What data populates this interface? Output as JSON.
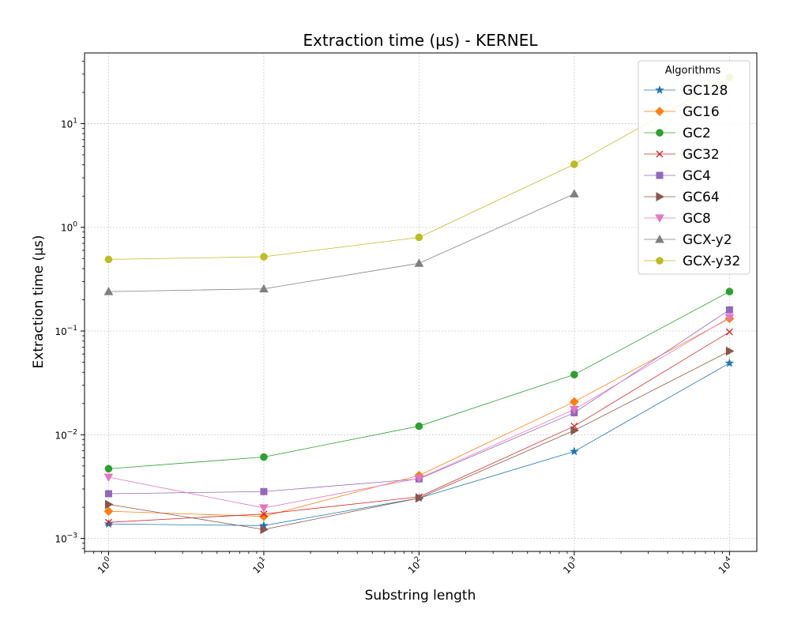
{
  "chart_data": {
    "type": "line",
    "title": "Extraction time (µs) - KERNEL",
    "xlabel": "Substring length",
    "ylabel": "Extraction time (µs)",
    "x_scale": "log",
    "y_scale": "log",
    "x": [
      1,
      10,
      100,
      1000,
      10000
    ],
    "xlim": [
      0.7,
      15000
    ],
    "ylim": [
      0.00075,
      48
    ],
    "x_ticks": [
      {
        "value": 1,
        "base": "10",
        "exp": "0"
      },
      {
        "value": 10,
        "base": "10",
        "exp": "1"
      },
      {
        "value": 100,
        "base": "10",
        "exp": "2"
      },
      {
        "value": 1000,
        "base": "10",
        "exp": "3"
      },
      {
        "value": 10000,
        "base": "10",
        "exp": "4"
      }
    ],
    "y_ticks": [
      {
        "value": 0.001,
        "base": "10",
        "exp": "−3"
      },
      {
        "value": 0.01,
        "base": "10",
        "exp": "−2"
      },
      {
        "value": 0.1,
        "base": "10",
        "exp": "−1"
      },
      {
        "value": 1,
        "base": "10",
        "exp": "0"
      },
      {
        "value": 10,
        "base": "10",
        "exp": "1"
      }
    ],
    "grid": true,
    "legend_title": "Algorithms",
    "legend_position": "top-right",
    "series": [
      {
        "name": "GC128",
        "color": "#1f77b4",
        "marker": "star",
        "values": [
          0.00138,
          0.00133,
          0.00245,
          0.0069,
          0.049
        ]
      },
      {
        "name": "GC16",
        "color": "#ff7f0e",
        "marker": "diamond",
        "values": [
          0.00183,
          0.00163,
          0.00405,
          0.0208,
          0.132
        ]
      },
      {
        "name": "GC2",
        "color": "#2ca02c",
        "marker": "hexagon",
        "values": [
          0.0047,
          0.0061,
          0.0121,
          0.038,
          0.24
        ]
      },
      {
        "name": "GC32",
        "color": "#d62728",
        "marker": "x",
        "values": [
          0.00143,
          0.00172,
          0.00252,
          0.0121,
          0.098
        ]
      },
      {
        "name": "GC4",
        "color": "#9467bd",
        "marker": "square",
        "values": [
          0.0027,
          0.00283,
          0.00375,
          0.0163,
          0.16
        ]
      },
      {
        "name": "GC64",
        "color": "#8c564b",
        "marker": "triangle-right",
        "values": [
          0.00213,
          0.00122,
          0.00245,
          0.011,
          0.064
        ]
      },
      {
        "name": "GC8",
        "color": "#e377c2",
        "marker": "triangle-down",
        "values": [
          0.0039,
          0.00197,
          0.0038,
          0.0175,
          0.135
        ]
      },
      {
        "name": "GCX-y2",
        "color": "#7f7f7f",
        "marker": "triangle-up",
        "values": [
          0.24,
          0.255,
          0.45,
          2.1,
          null
        ]
      },
      {
        "name": "GCX-y32",
        "color": "#bcbd22",
        "marker": "circle",
        "values": [
          0.49,
          0.52,
          0.8,
          4.05,
          28.0
        ]
      }
    ]
  }
}
